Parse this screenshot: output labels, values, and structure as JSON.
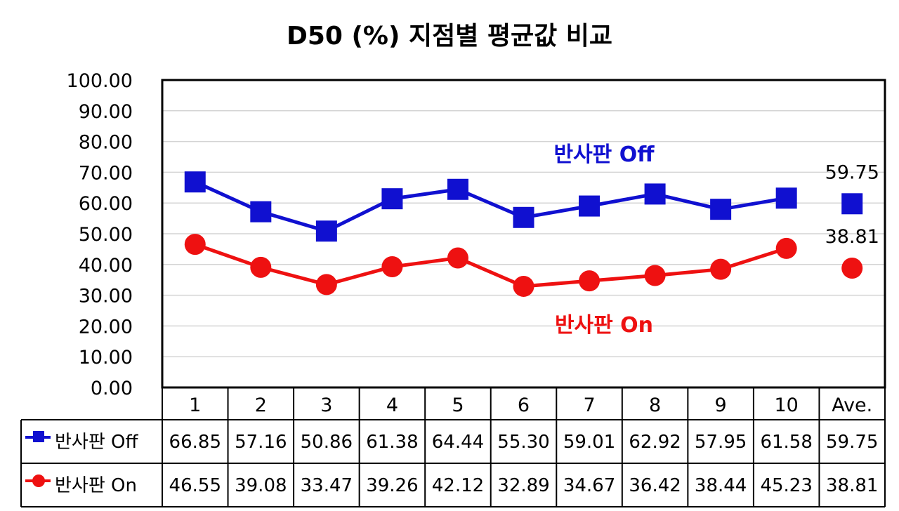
{
  "chart_data": {
    "type": "line",
    "title": "D50 (%) 지점별 평균값 비교",
    "categories": [
      "1",
      "2",
      "3",
      "4",
      "5",
      "6",
      "7",
      "8",
      "9",
      "10",
      "Ave."
    ],
    "ylim": [
      0,
      100
    ],
    "yticks": [
      "0.00",
      "10.00",
      "20.00",
      "30.00",
      "40.00",
      "50.00",
      "60.00",
      "70.00",
      "80.00",
      "90.00",
      "100.00"
    ],
    "grid": true,
    "series": [
      {
        "name": "반사판 Off",
        "color": "#1010d0",
        "marker": "square",
        "values": [
          66.85,
          57.16,
          50.86,
          61.38,
          64.44,
          55.3,
          59.01,
          62.92,
          57.95,
          61.58,
          59.75
        ],
        "labels": [
          "66.85",
          "57.16",
          "50.86",
          "61.38",
          "64.44",
          "55.30",
          "59.01",
          "62.92",
          "57.95",
          "61.58",
          "59.75"
        ],
        "average_label": "59.75"
      },
      {
        "name": "반사판 On",
        "color": "#ee1111",
        "marker": "circle",
        "values": [
          46.55,
          39.08,
          33.47,
          39.26,
          42.12,
          32.89,
          34.67,
          36.42,
          38.44,
          45.23,
          38.81
        ],
        "labels": [
          "46.55",
          "39.08",
          "33.47",
          "39.26",
          "42.12",
          "32.89",
          "34.67",
          "36.42",
          "38.44",
          "45.23",
          "38.81"
        ],
        "average_label": "38.81"
      }
    ]
  }
}
